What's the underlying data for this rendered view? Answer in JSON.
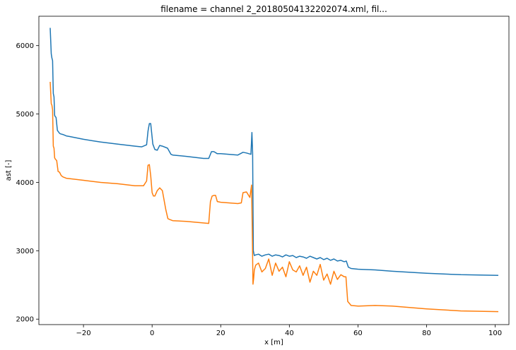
{
  "chart_data": {
    "type": "line",
    "title": "filename = channel 2_20180504132202074.xml, fil...",
    "xlabel": "x [m]",
    "ylabel": "ast [-]",
    "xlim": [
      -33,
      104
    ],
    "ylim": [
      1920,
      6430
    ],
    "xticks": [
      -20,
      0,
      20,
      40,
      60,
      80,
      100
    ],
    "yticks": [
      2000,
      3000,
      4000,
      5000,
      6000
    ],
    "grid": false,
    "series": [
      {
        "color": "#1f77b4",
        "x": [
          -29.7,
          -29.4,
          -29.2,
          -29.0,
          -28.8,
          -28.6,
          -28.4,
          -28.2,
          -28.0,
          -27.6,
          -27.3,
          -27.0,
          -26.7,
          -26.0,
          -25.0,
          -24.0,
          -20.0,
          -15.0,
          -10.0,
          -5.0,
          -3.0,
          -1.6,
          -1.2,
          -0.8,
          -0.4,
          0.2,
          0.8,
          1.5,
          2.2,
          3.0,
          4.5,
          5.5,
          6.0,
          10.0,
          15.0,
          16.5,
          17.3,
          18.0,
          19.0,
          20.0,
          25.0,
          26.5,
          27.5,
          28.2,
          28.8,
          29.1,
          29.3,
          29.5,
          29.8,
          30.2,
          31.0,
          32.0,
          33.0,
          34.0,
          35.0,
          36.0,
          37.0,
          38.0,
          39.0,
          40.0,
          41.0,
          42.0,
          43.0,
          44.0,
          45.0,
          46.0,
          47.0,
          48.0,
          49.0,
          50.0,
          51.0,
          52.0,
          53.0,
          54.0,
          55.0,
          56.0,
          56.6,
          57.2,
          58.0,
          60.0,
          65.0,
          70.0,
          80.0,
          90.0,
          100.9
        ],
        "y": [
          6260,
          5880,
          5820,
          5780,
          5300,
          5250,
          4980,
          4960,
          4950,
          4760,
          4740,
          4720,
          4710,
          4700,
          4680,
          4670,
          4630,
          4590,
          4560,
          4530,
          4520,
          4550,
          4750,
          4860,
          4860,
          4560,
          4480,
          4470,
          4540,
          4530,
          4500,
          4410,
          4400,
          4380,
          4350,
          4350,
          4450,
          4450,
          4420,
          4420,
          4400,
          4440,
          4430,
          4420,
          4410,
          4730,
          4430,
          3000,
          2930,
          2940,
          2950,
          2920,
          2940,
          2950,
          2920,
          2940,
          2930,
          2910,
          2940,
          2920,
          2930,
          2900,
          2920,
          2910,
          2890,
          2920,
          2900,
          2880,
          2900,
          2870,
          2890,
          2860,
          2880,
          2850,
          2860,
          2840,
          2850,
          2760,
          2740,
          2730,
          2720,
          2700,
          2670,
          2650,
          2640
        ]
      },
      {
        "color": "#ff7f0e",
        "x": [
          -29.7,
          -29.4,
          -29.2,
          -29.0,
          -28.8,
          -28.6,
          -28.4,
          -28.2,
          -27.8,
          -27.4,
          -27.0,
          -26.5,
          -26.0,
          -25.0,
          -20.0,
          -15.0,
          -10.0,
          -5.0,
          -2.5,
          -1.6,
          -1.2,
          -0.8,
          -0.4,
          0.0,
          0.4,
          0.8,
          1.5,
          2.2,
          3.0,
          4.0,
          4.6,
          5.0,
          6.0,
          10.0,
          16.5,
          17.0,
          17.5,
          18.0,
          18.5,
          19.0,
          20.0,
          25.0,
          26.0,
          26.5,
          27.5,
          28.5,
          29.0,
          29.2,
          29.4,
          29.6,
          29.8,
          30.2,
          31.0,
          32.0,
          33.0,
          34.0,
          35.0,
          36.0,
          37.0,
          38.0,
          39.0,
          40.0,
          41.0,
          42.0,
          43.0,
          44.0,
          45.0,
          46.0,
          47.0,
          48.0,
          49.0,
          50.0,
          51.0,
          52.0,
          53.0,
          54.0,
          55.0,
          56.0,
          56.5,
          57.0,
          58.0,
          60.0,
          65.0,
          70.0,
          80.0,
          90.0,
          100.9
        ],
        "y": [
          5470,
          5150,
          5130,
          5060,
          4530,
          4500,
          4360,
          4340,
          4320,
          4160,
          4150,
          4100,
          4080,
          4060,
          4030,
          4000,
          3980,
          3950,
          3950,
          4020,
          4250,
          4260,
          4100,
          3850,
          3800,
          3800,
          3880,
          3920,
          3880,
          3600,
          3470,
          3460,
          3440,
          3430,
          3400,
          3720,
          3800,
          3810,
          3810,
          3720,
          3710,
          3690,
          3700,
          3850,
          3860,
          3780,
          3960,
          3300,
          2510,
          2600,
          2720,
          2790,
          2820,
          2690,
          2740,
          2880,
          2640,
          2820,
          2700,
          2760,
          2620,
          2840,
          2720,
          2690,
          2780,
          2640,
          2760,
          2540,
          2700,
          2640,
          2800,
          2570,
          2660,
          2510,
          2700,
          2580,
          2650,
          2620,
          2620,
          2260,
          2200,
          2190,
          2200,
          2190,
          2150,
          2120,
          2110
        ]
      }
    ]
  }
}
